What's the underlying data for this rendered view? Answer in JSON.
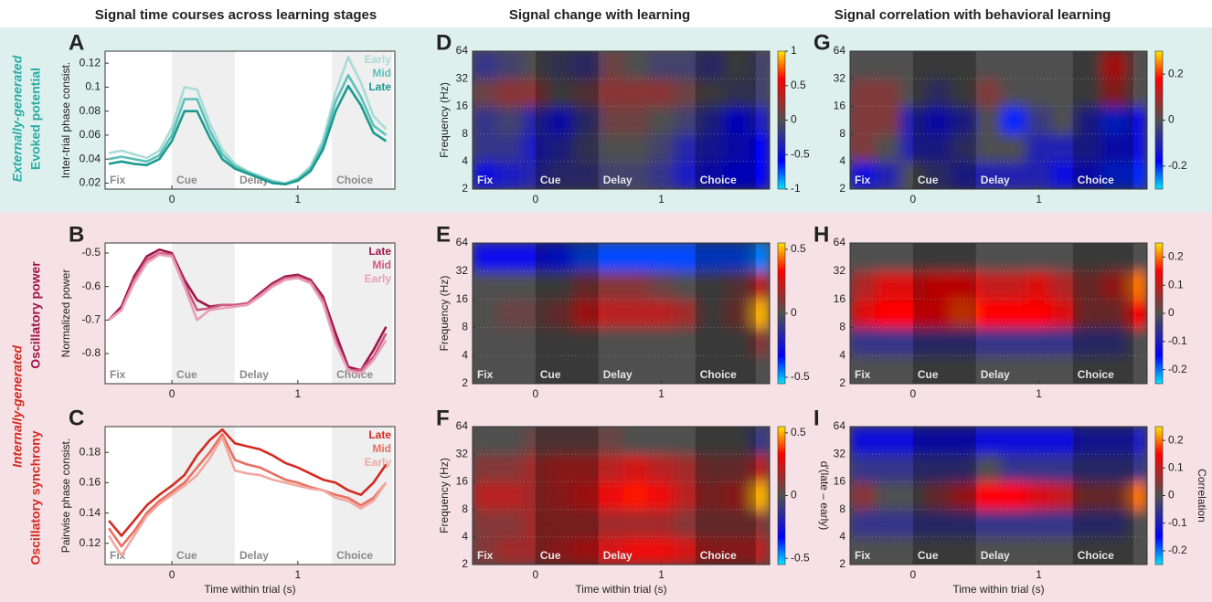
{
  "column_titles": [
    "Signal time courses across learning stages",
    "Signal change with learning",
    "Signal correlation with behavioral learning"
  ],
  "row_labels": [
    {
      "kind": "Externally-generated",
      "signals": [
        "Evoked potential"
      ]
    },
    {
      "kind": "Internally-generated",
      "signals": [
        "Oscillatory power",
        "Oscillatory synchrony"
      ]
    }
  ],
  "epochs": [
    {
      "label": "Fix",
      "start": -0.53,
      "end": 0
    },
    {
      "label": "Cue",
      "start": 0,
      "end": 0.5,
      "shaded": true
    },
    {
      "label": "Delay",
      "start": 0.5,
      "end": 1.27
    },
    {
      "label": "Choice",
      "start": 1.27,
      "end": 1.75,
      "shaded": true
    }
  ],
  "chart_data": [
    {
      "type": "line",
      "panel": "A",
      "ylabel": "Inter-trial phase consist.",
      "x": [
        -0.5,
        -0.4,
        -0.3,
        -0.2,
        -0.1,
        0,
        0.1,
        0.2,
        0.3,
        0.4,
        0.5,
        0.6,
        0.7,
        0.8,
        0.9,
        1.0,
        1.1,
        1.2,
        1.3,
        1.4,
        1.5,
        1.6,
        1.7
      ],
      "series": [
        {
          "name": "Early",
          "color": "#a8dcd8",
          "values": [
            0.045,
            0.047,
            0.044,
            0.041,
            0.047,
            0.066,
            0.1,
            0.098,
            0.07,
            0.048,
            0.036,
            0.03,
            0.026,
            0.022,
            0.02,
            0.024,
            0.034,
            0.056,
            0.096,
            0.125,
            0.104,
            0.076,
            0.065
          ]
        },
        {
          "name": "Mid",
          "color": "#5cc0b8",
          "values": [
            0.04,
            0.042,
            0.04,
            0.038,
            0.043,
            0.06,
            0.09,
            0.09,
            0.064,
            0.044,
            0.034,
            0.029,
            0.025,
            0.021,
            0.019,
            0.023,
            0.032,
            0.052,
            0.088,
            0.11,
            0.092,
            0.068,
            0.06
          ]
        },
        {
          "name": "Late",
          "color": "#1a9a90",
          "values": [
            0.036,
            0.038,
            0.036,
            0.035,
            0.04,
            0.055,
            0.08,
            0.08,
            0.058,
            0.04,
            0.032,
            0.028,
            0.024,
            0.02,
            0.019,
            0.022,
            0.03,
            0.048,
            0.08,
            0.101,
            0.085,
            0.062,
            0.055
          ]
        }
      ],
      "xlim": [
        -0.53,
        1.77
      ],
      "xticks": [
        0,
        1
      ],
      "ylim": [
        0.015,
        0.13
      ],
      "yticks": [
        0.02,
        0.04,
        0.06,
        0.08,
        0.1,
        0.12
      ]
    },
    {
      "type": "line",
      "panel": "B",
      "ylabel": "Normalized power",
      "x": [
        -0.5,
        -0.4,
        -0.3,
        -0.2,
        -0.1,
        0,
        0.1,
        0.2,
        0.3,
        0.4,
        0.5,
        0.6,
        0.7,
        0.8,
        0.9,
        1.0,
        1.1,
        1.2,
        1.3,
        1.4,
        1.5,
        1.6,
        1.7
      ],
      "series": [
        {
          "name": "Late",
          "color": "#a0144a",
          "values": [
            -0.7,
            -0.66,
            -0.57,
            -0.51,
            -0.49,
            -0.5,
            -0.58,
            -0.64,
            -0.66,
            -0.655,
            -0.655,
            -0.65,
            -0.62,
            -0.59,
            -0.57,
            -0.565,
            -0.58,
            -0.63,
            -0.74,
            -0.84,
            -0.85,
            -0.79,
            -0.72
          ]
        },
        {
          "name": "Mid",
          "color": "#cc5a80",
          "values": [
            -0.7,
            -0.67,
            -0.58,
            -0.52,
            -0.5,
            -0.505,
            -0.59,
            -0.67,
            -0.665,
            -0.655,
            -0.655,
            -0.65,
            -0.625,
            -0.595,
            -0.575,
            -0.57,
            -0.585,
            -0.64,
            -0.76,
            -0.85,
            -0.85,
            -0.81,
            -0.74
          ]
        },
        {
          "name": "Early",
          "color": "#e8a0b8",
          "values": [
            -0.7,
            -0.67,
            -0.59,
            -0.53,
            -0.505,
            -0.51,
            -0.6,
            -0.7,
            -0.67,
            -0.665,
            -0.66,
            -0.655,
            -0.63,
            -0.6,
            -0.58,
            -0.575,
            -0.59,
            -0.65,
            -0.77,
            -0.85,
            -0.86,
            -0.82,
            -0.76
          ]
        }
      ],
      "xlim": [
        -0.53,
        1.77
      ],
      "xticks": [
        0,
        1
      ],
      "ylim": [
        -0.89,
        -0.47
      ],
      "yticks": [
        -0.5,
        -0.6,
        -0.7,
        -0.8
      ]
    },
    {
      "type": "line",
      "panel": "C",
      "ylabel": "Pairwise phase consist.",
      "xlabel": "Time within trial (s)",
      "x": [
        -0.5,
        -0.4,
        -0.3,
        -0.2,
        -0.1,
        0,
        0.1,
        0.2,
        0.3,
        0.4,
        0.5,
        0.6,
        0.7,
        0.8,
        0.9,
        1.0,
        1.1,
        1.2,
        1.3,
        1.4,
        1.5,
        1.6,
        1.7
      ],
      "series": [
        {
          "name": "Late",
          "color": "#d42a20",
          "values": [
            0.135,
            0.125,
            0.135,
            0.145,
            0.152,
            0.158,
            0.165,
            0.178,
            0.188,
            0.195,
            0.186,
            0.184,
            0.182,
            0.178,
            0.173,
            0.17,
            0.166,
            0.162,
            0.16,
            0.155,
            0.152,
            0.16,
            0.172
          ]
        },
        {
          "name": "Mid",
          "color": "#e87060",
          "values": [
            0.13,
            0.118,
            0.128,
            0.14,
            0.148,
            0.154,
            0.16,
            0.17,
            0.18,
            0.192,
            0.175,
            0.172,
            0.17,
            0.166,
            0.162,
            0.16,
            0.157,
            0.155,
            0.152,
            0.15,
            0.145,
            0.15,
            0.16
          ]
        },
        {
          "name": "Early",
          "color": "#f0a8a0",
          "values": [
            0.125,
            0.112,
            0.125,
            0.138,
            0.146,
            0.152,
            0.158,
            0.165,
            0.176,
            0.19,
            0.168,
            0.166,
            0.165,
            0.162,
            0.16,
            0.158,
            0.156,
            0.155,
            0.15,
            0.148,
            0.143,
            0.148,
            0.16
          ]
        }
      ],
      "xlim": [
        -0.53,
        1.77
      ],
      "xticks": [
        0,
        1
      ],
      "ylim": [
        0.106,
        0.197
      ],
      "yticks": [
        0.12,
        0.14,
        0.16,
        0.18
      ]
    },
    {
      "type": "heatmap",
      "panel": "D",
      "ylabel": "Frequency (Hz)",
      "xbins": [
        -0.5,
        -0.3,
        -0.1,
        0.1,
        0.3,
        0.5,
        0.7,
        0.9,
        1.1,
        1.3,
        1.5,
        1.7,
        1.86
      ],
      "ybins": [
        2,
        4,
        8,
        16,
        32,
        64
      ],
      "z": [
        [
          -0.5,
          -0.4,
          -0.3,
          -0.2,
          -0.2,
          -0.1,
          -0.1,
          -0.2,
          -0.4,
          -0.5,
          -0.6,
          -0.6
        ],
        [
          -0.2,
          -0.2,
          -0.4,
          -0.3,
          -0.1,
          0,
          0,
          -0.1,
          -0.3,
          -0.4,
          -0.5,
          -0.6
        ],
        [
          -0.2,
          -0.1,
          -0.3,
          -0.5,
          -0.2,
          0.1,
          0.1,
          0,
          -0.1,
          -0.3,
          -0.6,
          -0.4
        ],
        [
          0.1,
          0.2,
          0.2,
          0,
          0.1,
          0.2,
          0.2,
          0.2,
          0.1,
          0,
          -0.1,
          -0.1
        ],
        [
          -0.2,
          -0.1,
          0,
          -0.1,
          -0.2,
          0.1,
          0,
          -0.1,
          -0.1,
          -0.2,
          0,
          -0.1
        ]
      ],
      "xlim": [
        -0.5,
        1.86
      ],
      "xticks": [
        0,
        1
      ],
      "ylim": [
        2,
        64
      ],
      "yticks": [
        2,
        4,
        8,
        16,
        32,
        64
      ],
      "ylog": true,
      "grid": true,
      "clim": [
        -1,
        1
      ],
      "cticks": [
        -1,
        -0.5,
        0,
        0.5,
        1
      ]
    },
    {
      "type": "heatmap",
      "panel": "E",
      "ylabel": "Frequency (Hz)",
      "xbins": [
        -0.5,
        -0.3,
        -0.1,
        0.1,
        0.3,
        0.5,
        0.7,
        0.9,
        1.1,
        1.3,
        1.5,
        1.7,
        1.86
      ],
      "ybins": [
        2,
        4,
        8,
        16,
        32,
        64
      ],
      "z": [
        [
          0,
          0,
          0,
          0,
          0,
          0,
          0,
          0,
          0,
          0,
          0,
          0
        ],
        [
          0,
          0,
          0,
          0,
          0,
          0,
          0,
          0,
          0,
          0,
          0,
          0.1
        ],
        [
          0,
          0.05,
          0.05,
          0.1,
          0.25,
          0.2,
          0.2,
          0.2,
          0.15,
          0,
          0.1,
          0.5
        ],
        [
          0,
          0,
          0,
          0,
          0.1,
          0.1,
          0.1,
          0.05,
          0,
          0,
          0.05,
          0.2
        ],
        [
          -0.3,
          -0.3,
          -0.3,
          -0.35,
          -0.4,
          -0.4,
          -0.4,
          -0.4,
          -0.4,
          -0.4,
          -0.4,
          -0.45
        ]
      ],
      "xlim": [
        -0.5,
        1.86
      ],
      "xticks": [
        0,
        1
      ],
      "ylim": [
        2,
        64
      ],
      "yticks": [
        2,
        4,
        8,
        16,
        32,
        64
      ],
      "ylog": true,
      "grid": true,
      "clim": [
        -0.55,
        0.55
      ],
      "cticks": [
        -0.5,
        0,
        0.5
      ]
    },
    {
      "type": "heatmap",
      "panel": "F",
      "ylabel": "Frequency (Hz)",
      "xlabel": "Time within trial (s)",
      "clabel": "d′(late – early)",
      "xbins": [
        -0.5,
        -0.3,
        -0.1,
        0.1,
        0.3,
        0.5,
        0.7,
        0.9,
        1.1,
        1.3,
        1.5,
        1.7,
        1.86
      ],
      "ybins": [
        2,
        4,
        8,
        16,
        32,
        64
      ],
      "z": [
        [
          0.1,
          0.15,
          0.15,
          0.2,
          0.25,
          0.25,
          0.3,
          0.3,
          0.25,
          0.2,
          0.2,
          0.2
        ],
        [
          0.1,
          0.1,
          0.15,
          0.15,
          0.15,
          0.15,
          0.15,
          0.15,
          0.1,
          0.1,
          0.1,
          0.1
        ],
        [
          0.2,
          0.2,
          0.15,
          0.2,
          0.25,
          0.3,
          0.35,
          0.3,
          0.2,
          0.15,
          0.2,
          0.5
        ],
        [
          0.1,
          0.1,
          0.15,
          0.2,
          0.2,
          0.2,
          0.25,
          0.2,
          0.15,
          0.1,
          0.1,
          0.2
        ],
        [
          0,
          0,
          0.05,
          0.05,
          0.05,
          0.05,
          0,
          0,
          0,
          0,
          0,
          -0.1
        ]
      ],
      "xlim": [
        -0.5,
        1.86
      ],
      "xticks": [
        0,
        1
      ],
      "ylim": [
        2,
        64
      ],
      "yticks": [
        2,
        4,
        8,
        16,
        32,
        64
      ],
      "ylog": true,
      "grid": true,
      "clim": [
        -0.55,
        0.55
      ],
      "cticks": [
        -0.5,
        0,
        0.5
      ]
    },
    {
      "type": "heatmap",
      "panel": "G",
      "xbins": [
        -0.5,
        -0.3,
        -0.1,
        0.1,
        0.3,
        0.5,
        0.7,
        0.9,
        1.1,
        1.3,
        1.5,
        1.7,
        1.86
      ],
      "ybins": [
        2,
        4,
        8,
        16,
        32,
        64
      ],
      "z": [
        [
          -0.15,
          -0.1,
          0,
          -0.05,
          -0.1,
          -0.1,
          -0.1,
          -0.1,
          -0.15,
          -0.15,
          -0.2,
          -0.2
        ],
        [
          0.05,
          0,
          -0.1,
          -0.1,
          -0.05,
          0,
          0,
          -0.1,
          -0.1,
          -0.1,
          -0.15,
          -0.15
        ],
        [
          0.05,
          0.05,
          -0.1,
          -0.15,
          -0.1,
          0,
          -0.2,
          -0.05,
          0,
          -0.1,
          -0.2,
          -0.15
        ],
        [
          0.05,
          0.05,
          0,
          -0.05,
          0,
          0.05,
          0,
          0,
          0,
          0,
          0.1,
          0
        ],
        [
          0,
          0,
          0,
          0,
          0,
          0,
          0,
          0,
          0,
          0,
          0.15,
          0
        ]
      ],
      "xlim": [
        -0.5,
        1.86
      ],
      "xticks": [
        0,
        1
      ],
      "ylim": [
        2,
        64
      ],
      "yticks": [
        2,
        4,
        8,
        16,
        32,
        64
      ],
      "ylog": true,
      "grid": true,
      "clim": [
        -0.3,
        0.3
      ],
      "cticks": [
        -0.2,
        0,
        0.2
      ]
    },
    {
      "type": "heatmap",
      "panel": "H",
      "xbins": [
        -0.5,
        -0.3,
        -0.1,
        0.1,
        0.3,
        0.5,
        0.7,
        0.9,
        1.1,
        1.3,
        1.5,
        1.7,
        1.86
      ],
      "ybins": [
        2,
        4,
        8,
        16,
        32,
        64
      ],
      "z": [
        [
          0,
          0,
          0,
          0,
          0,
          0,
          0,
          0,
          0,
          0,
          0,
          0
        ],
        [
          -0.05,
          -0.05,
          -0.05,
          -0.05,
          -0.05,
          -0.05,
          -0.05,
          -0.05,
          -0.05,
          -0.05,
          -0.05,
          0
        ],
        [
          0.12,
          0.15,
          0.15,
          0.15,
          0.18,
          0.15,
          0.15,
          0.15,
          0.12,
          0.05,
          0.05,
          0.15
        ],
        [
          0.08,
          0.12,
          0.12,
          0.15,
          0.15,
          0.1,
          0.1,
          0.12,
          0.08,
          0.05,
          0.1,
          0.2
        ],
        [
          0,
          0,
          0,
          0,
          0,
          0,
          0,
          0,
          0,
          0,
          0,
          0
        ]
      ],
      "xlim": [
        -0.5,
        1.86
      ],
      "xticks": [
        0,
        1
      ],
      "ylim": [
        2,
        64
      ],
      "yticks": [
        2,
        4,
        8,
        16,
        32,
        64
      ],
      "ylog": true,
      "grid": true,
      "clim": [
        -0.25,
        0.25
      ],
      "cticks": [
        -0.2,
        -0.1,
        0,
        0.1,
        0.2
      ]
    },
    {
      "type": "heatmap",
      "panel": "I",
      "xlabel": "Time within trial (s)",
      "clabel": "Correlation",
      "xbins": [
        -0.5,
        -0.3,
        -0.1,
        0.1,
        0.3,
        0.5,
        0.7,
        0.9,
        1.1,
        1.3,
        1.5,
        1.7,
        1.86
      ],
      "ybins": [
        2,
        4,
        8,
        16,
        32,
        64
      ],
      "z": [
        [
          0,
          0,
          0,
          0,
          0,
          0,
          0,
          0,
          0,
          0,
          0,
          0
        ],
        [
          -0.05,
          -0.05,
          -0.05,
          -0.05,
          -0.05,
          -0.05,
          -0.05,
          -0.05,
          -0.05,
          -0.05,
          -0.05,
          0
        ],
        [
          0.05,
          0,
          0,
          0.05,
          0.1,
          0.15,
          0.15,
          0.12,
          0.1,
          0.05,
          0.05,
          0.2
        ],
        [
          -0.05,
          -0.05,
          -0.05,
          -0.05,
          -0.05,
          0,
          -0.05,
          -0.05,
          -0.05,
          -0.05,
          -0.05,
          -0.05
        ],
        [
          -0.12,
          -0.12,
          -0.12,
          -0.12,
          -0.12,
          -0.12,
          -0.12,
          -0.12,
          -0.12,
          -0.1,
          -0.1,
          -0.1
        ]
      ],
      "xlim": [
        -0.5,
        1.86
      ],
      "xticks": [
        0,
        1
      ],
      "ylim": [
        2,
        64
      ],
      "yticks": [
        2,
        4,
        8,
        16,
        32,
        64
      ],
      "ylog": true,
      "grid": true,
      "clim": [
        -0.25,
        0.25
      ],
      "cticks": [
        -0.2,
        -0.1,
        0,
        0.1,
        0.2
      ]
    }
  ]
}
